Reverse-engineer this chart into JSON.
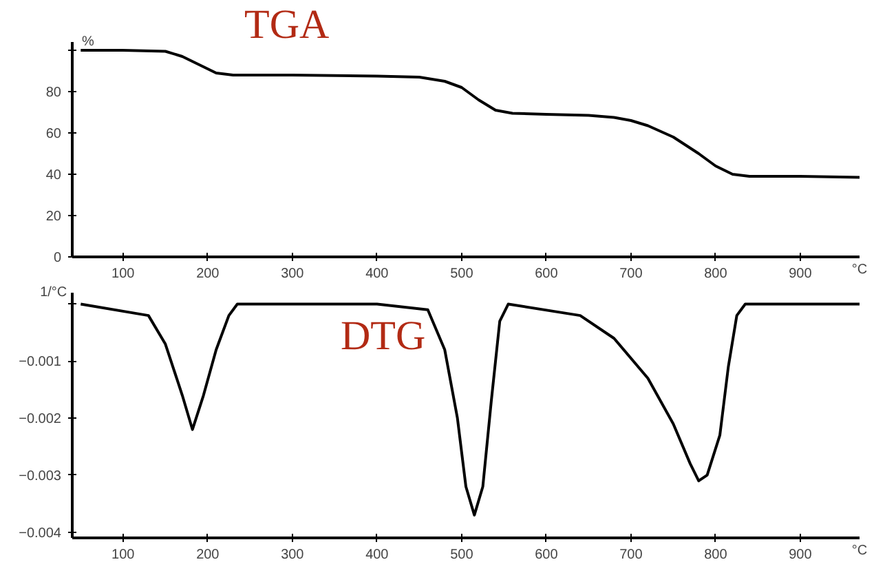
{
  "chart_data": [
    {
      "type": "line",
      "title": "TGA",
      "xlabel": "°C",
      "ylabel": "%",
      "xlim": [
        40,
        970
      ],
      "ylim": [
        0,
        104
      ],
      "xticks": [
        100,
        200,
        300,
        400,
        500,
        600,
        700,
        800,
        900
      ],
      "yticks": [
        0,
        20,
        40,
        60,
        80,
        {
          "value": 100,
          "label": null
        }
      ],
      "grid": false,
      "series": [
        {
          "color": "#000000",
          "x": [
            50,
            100,
            150,
            170,
            190,
            210,
            230,
            300,
            400,
            450,
            480,
            500,
            520,
            540,
            560,
            600,
            650,
            680,
            700,
            720,
            750,
            780,
            800,
            820,
            840,
            900,
            970
          ],
          "values": [
            100,
            100,
            99.5,
            97,
            93,
            89,
            88,
            88,
            87.5,
            87,
            85,
            82,
            76,
            71,
            69.5,
            69,
            68.5,
            67.5,
            66,
            63.5,
            58,
            50,
            44,
            40,
            39,
            39,
            38.5
          ]
        }
      ]
    },
    {
      "type": "line",
      "title": "DTG",
      "xlabel": "°C",
      "ylabel": "1/°C",
      "xlim": [
        40,
        970
      ],
      "ylim": [
        -0.0041,
        0.0002
      ],
      "xticks": [
        100,
        200,
        300,
        400,
        500,
        600,
        700,
        800,
        900
      ],
      "yticks": [
        -0.004,
        -0.003,
        -0.002,
        -0.001,
        {
          "value": 0,
          "label": null
        }
      ],
      "grid": false,
      "series": [
        {
          "color": "#000000",
          "x": [
            50,
            130,
            150,
            170,
            182,
            195,
            210,
            225,
            235,
            300,
            400,
            460,
            480,
            495,
            505,
            515,
            525,
            535,
            545,
            555,
            640,
            680,
            720,
            750,
            770,
            780,
            790,
            805,
            815,
            825,
            835,
            970
          ],
          "values": [
            0,
            -0.0002,
            -0.0007,
            -0.0016,
            -0.0022,
            -0.0016,
            -0.0008,
            -0.0002,
            0,
            0,
            0,
            -0.0001,
            -0.0008,
            -0.002,
            -0.0032,
            -0.0037,
            -0.0032,
            -0.0017,
            -0.0003,
            0,
            -0.0002,
            -0.0006,
            -0.0013,
            -0.0021,
            -0.0028,
            -0.0031,
            -0.003,
            -0.0023,
            -0.0011,
            -0.0002,
            0,
            0
          ]
        }
      ]
    }
  ]
}
